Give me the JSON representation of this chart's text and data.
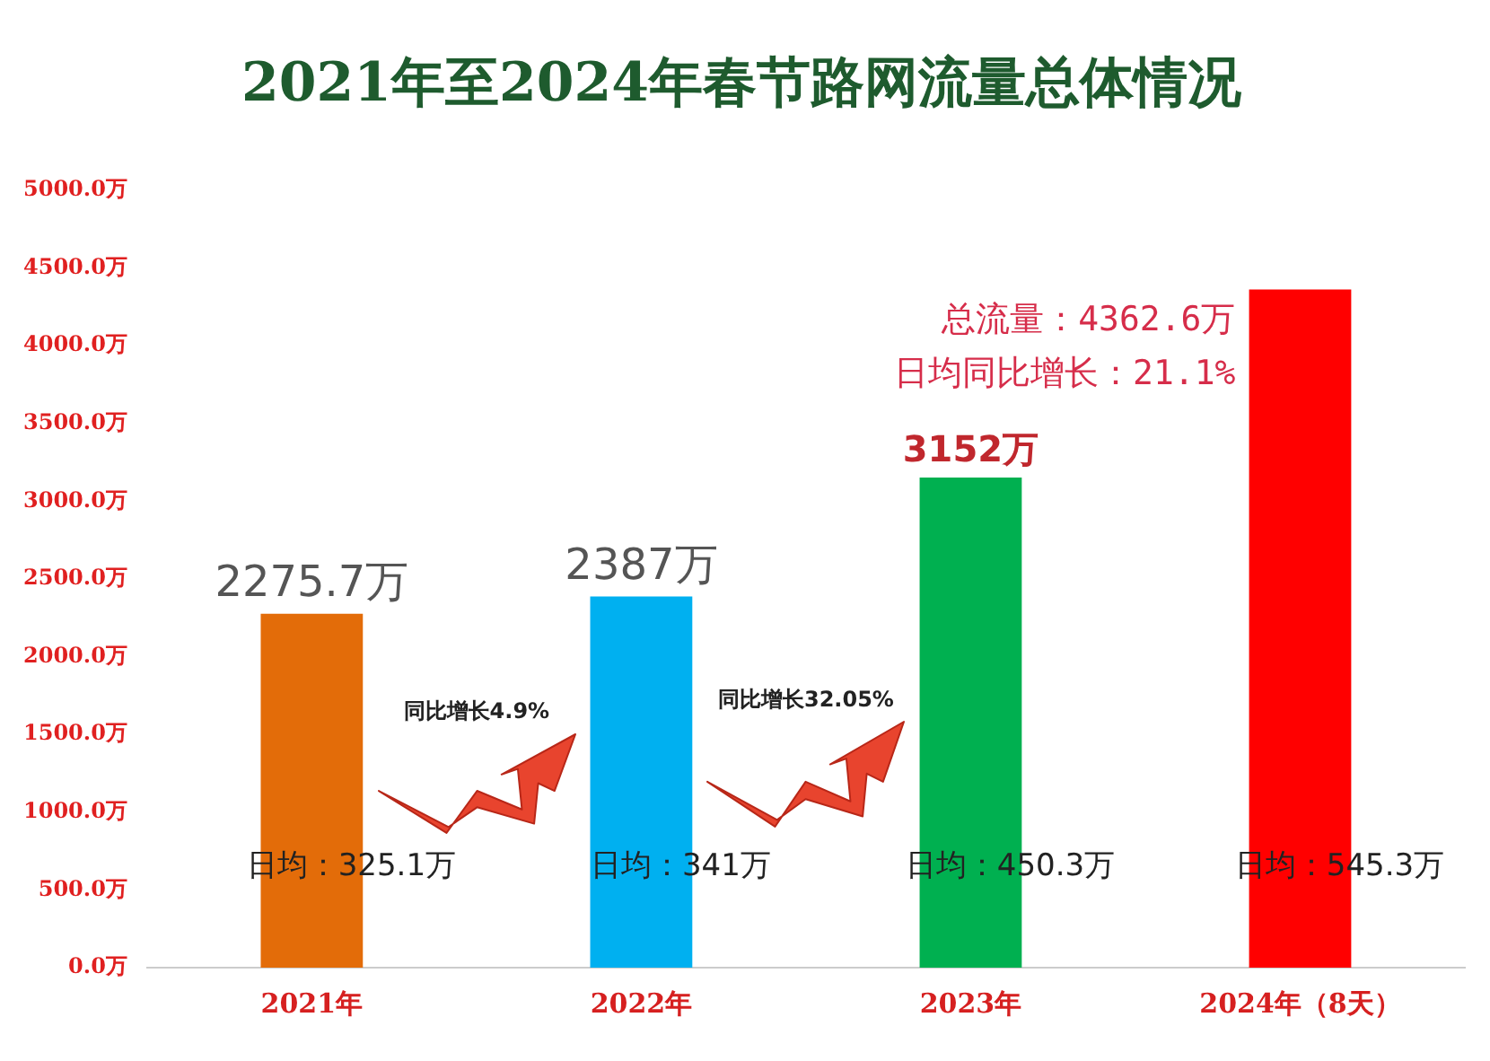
{
  "chart_data": {
    "type": "bar",
    "title": "2021年至2024年春节路网流量总体情况",
    "categories": [
      "2021年",
      "2022年",
      "2023年",
      "2024年（8天）"
    ],
    "values": [
      2275.7,
      2387,
      3152,
      4362.6
    ],
    "colors": [
      "#e36c09",
      "#00b0f0",
      "#00b050",
      "#ff0000"
    ],
    "value_labels": [
      "2275.7万",
      "2387万",
      "3152万",
      null
    ],
    "ylim": [
      0,
      5000
    ],
    "yticks": [
      {
        "value": 0,
        "label": "0.0万"
      },
      {
        "value": 500,
        "label": "500.0万"
      },
      {
        "value": 1000,
        "label": "1000.0万"
      },
      {
        "value": 1500,
        "label": "1500.0万"
      },
      {
        "value": 2000,
        "label": "2000.0万"
      },
      {
        "value": 2500,
        "label": "2500.0万"
      },
      {
        "value": 3000,
        "label": "3000.0万"
      },
      {
        "value": 3500,
        "label": "3500.0万"
      },
      {
        "value": 4000,
        "label": "4000.0万"
      },
      {
        "value": 4500,
        "label": "4500.0万"
      },
      {
        "value": 5000,
        "label": "5000.0万"
      }
    ],
    "grid": false,
    "legend": false,
    "annotations": [
      {
        "text": "总流量：4362.6万",
        "x": "2024年（8天）",
        "y": 4362.6
      },
      "日均同比增长：21.1%",
      "日均：325.1万",
      "日均：341万",
      "日均：450.3万",
      "日均：545.3万",
      "同比增长4.9%",
      "同比增长32.05%"
    ]
  }
}
